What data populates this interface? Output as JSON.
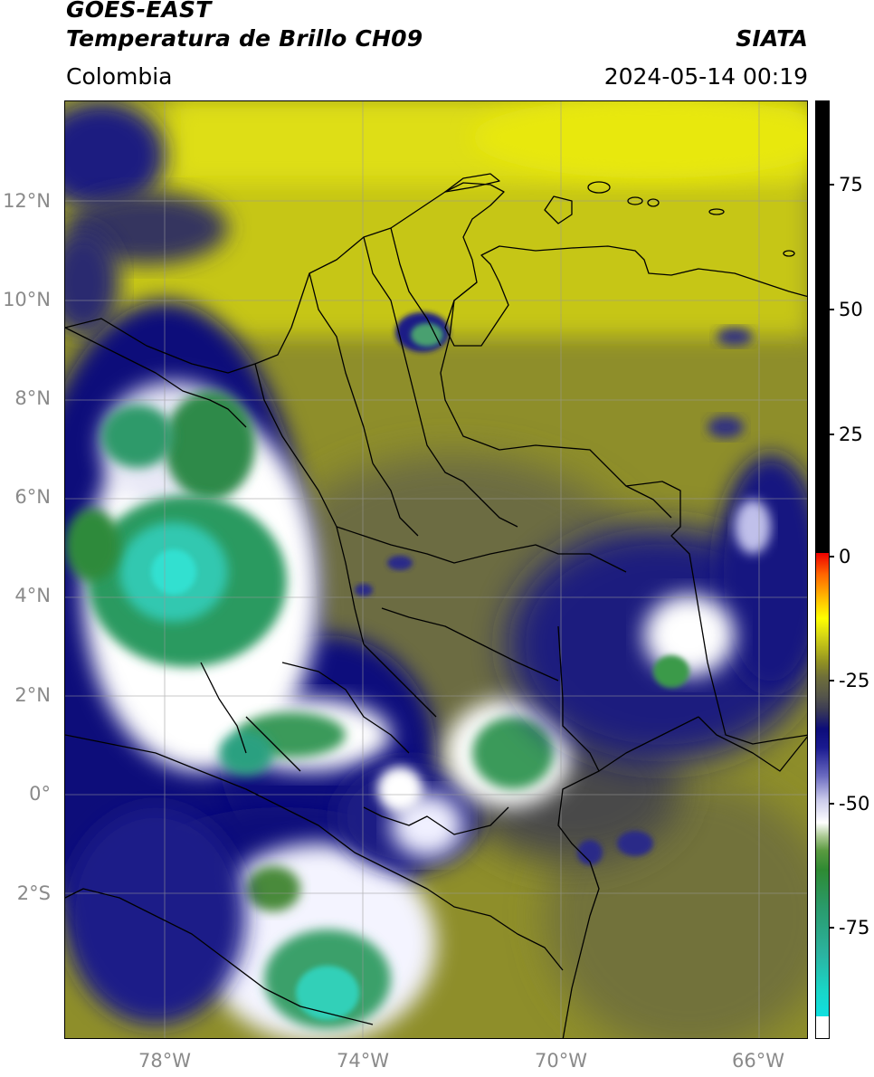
{
  "header": {
    "title_line1": "GOES-EAST",
    "title_line2": "Temperatura de Brillo CH09",
    "brand": "SIATA",
    "region": "Colombia",
    "datetime": "2024-05-14 00:19"
  },
  "map": {
    "lon_range": [
      -80,
      -65
    ],
    "lat_range": [
      -5,
      14
    ],
    "lat_labels": [
      "12°N",
      "10°N",
      "8°N",
      "6°N",
      "4°N",
      "2°N",
      "0°",
      "2°S"
    ],
    "lon_labels": [
      "78°W",
      "74°W",
      "70°W",
      "66°W"
    ],
    "gridlines": true
  },
  "colorbar": {
    "tick_labels": [
      "75",
      "50",
      "25",
      "0",
      "-25",
      "-50",
      "-75"
    ],
    "range": [
      -95,
      90
    ],
    "colors": {
      "warm_top": "#000000",
      "red": "#ee0000",
      "orange": "#ff6600",
      "yellow": "#ffff00",
      "olive": "#8e8e24",
      "gray": "#3a3a55",
      "navy": "#0c0c7a",
      "white": "#ffffff",
      "green": "#2e8a32",
      "teal": "#19d6c8",
      "cyan": "#10e0e0"
    }
  }
}
